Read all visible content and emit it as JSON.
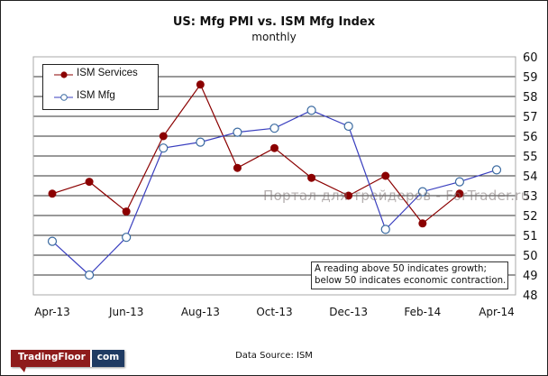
{
  "chart_data": {
    "type": "line",
    "title": "US: Mfg PMI vs. ISM Mfg Index",
    "subtitle": "monthly",
    "x": [
      "Apr-13",
      "May-13",
      "Jun-13",
      "Jul-13",
      "Aug-13",
      "Sep-13",
      "Oct-13",
      "Nov-13",
      "Dec-13",
      "Jan-14",
      "Feb-14",
      "Mar-14",
      "Apr-14"
    ],
    "xtick_labels": [
      "Apr-13",
      "Jun-13",
      "Aug-13",
      "Oct-13",
      "Dec-13",
      "Feb-14",
      "Apr-14"
    ],
    "ylim": [
      48,
      60
    ],
    "yticks": [
      48,
      49,
      50,
      51,
      52,
      53,
      54,
      55,
      56,
      57,
      58,
      59,
      60
    ],
    "y_axis_side": "right",
    "grid": true,
    "legend_placement": "top-left",
    "series": [
      {
        "name": "ISM Services",
        "color": "#8b0000",
        "marker": "filled-circle",
        "values": [
          53.1,
          53.7,
          52.2,
          56.0,
          58.6,
          54.4,
          55.4,
          53.9,
          53.0,
          54.0,
          51.6,
          53.1,
          null
        ]
      },
      {
        "name": "ISM Mfg",
        "color": "#3a3fbf",
        "marker": "open-circle",
        "values": [
          50.7,
          49.0,
          50.9,
          55.4,
          55.7,
          56.2,
          56.4,
          57.3,
          56.5,
          51.3,
          53.2,
          53.7,
          54.3
        ]
      }
    ],
    "annotation": "A reading above 50 indicates growth; below 50 indicates economic contraction."
  },
  "header": {
    "title": "US: Mfg PMI vs. ISM Mfg Index",
    "subtitle": "monthly"
  },
  "legend": {
    "items": [
      "ISM Services",
      "ISM Mfg"
    ]
  },
  "note": {
    "line1": "A reading above 50 indicates growth;",
    "line2": "below 50 indicates economic contraction."
  },
  "footer": {
    "source": "Data Source:  ISM",
    "logo_left": "TradingFloor",
    "logo_right": "com"
  },
  "watermark": "Портал для трейдеров - ForTrader.ru"
}
